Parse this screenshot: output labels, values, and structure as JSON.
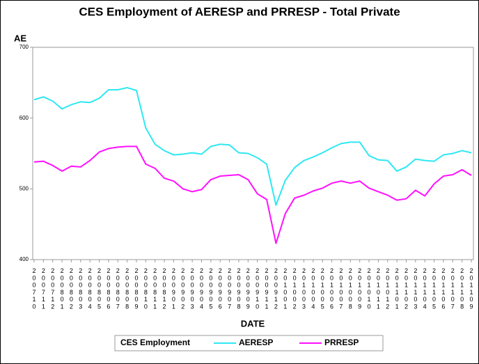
{
  "chart_data": {
    "type": "line",
    "title": "CES Employment of AERESP and PRRESP - Total Private",
    "x_label": "DATE",
    "y_label": "AE",
    "legend_title": "CES Employment",
    "categories": [
      "200710",
      "200711",
      "200712",
      "200801",
      "200802",
      "200803",
      "200804",
      "200805",
      "200806",
      "200807",
      "200808",
      "200809",
      "200810",
      "200811",
      "200812",
      "200901",
      "200902",
      "200903",
      "200904",
      "200905",
      "200906",
      "200907",
      "200908",
      "200909",
      "200910",
      "200911",
      "200912",
      "201001",
      "201002",
      "201003",
      "201004",
      "201005",
      "201006",
      "201007",
      "201008",
      "201009",
      "201010",
      "201011",
      "201012",
      "201101",
      "201102",
      "201103",
      "201104",
      "201105",
      "201106",
      "201107",
      "201108",
      "201109"
    ],
    "series": [
      {
        "name": "AERESP",
        "color": "#2ee8f2",
        "values": [
          626,
          630,
          624,
          613,
          619,
          623,
          622,
          628,
          640,
          640,
          643,
          639,
          586,
          563,
          554,
          548,
          549,
          551,
          549,
          560,
          563,
          562,
          551,
          550,
          544,
          535,
          477,
          512,
          530,
          540,
          545,
          551,
          558,
          564,
          566,
          566,
          547,
          541,
          540,
          525,
          531,
          542,
          540,
          539,
          548,
          550,
          554,
          551
        ]
      },
      {
        "name": "PRRESP",
        "color": "#ff10ff",
        "values": [
          538,
          539,
          533,
          525,
          532,
          531,
          540,
          552,
          557,
          559,
          560,
          560,
          535,
          529,
          515,
          511,
          500,
          496,
          499,
          513,
          518,
          519,
          520,
          513,
          493,
          485,
          423,
          465,
          487,
          491,
          497,
          501,
          508,
          511,
          508,
          511,
          501,
          496,
          491,
          484,
          486,
          498,
          490,
          507,
          518,
          520,
          527,
          519
        ]
      }
    ],
    "ylim": [
      400,
      700
    ],
    "yticks": [
      400,
      500,
      600,
      700
    ]
  }
}
